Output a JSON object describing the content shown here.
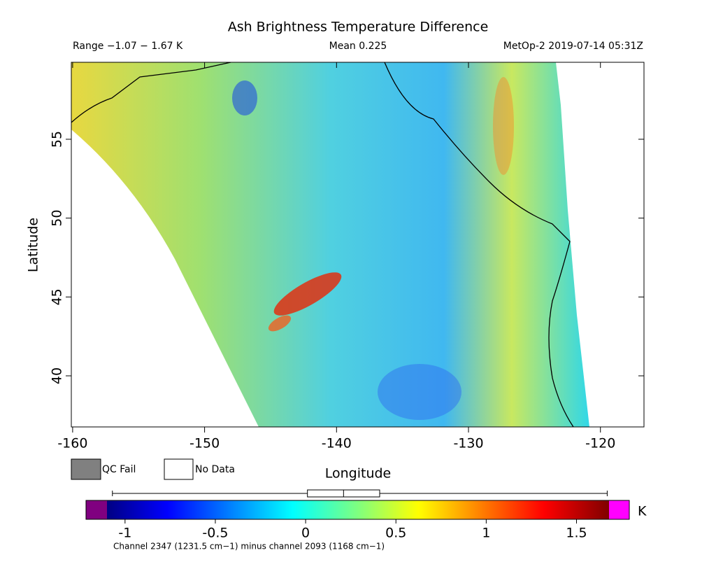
{
  "chart_data": {
    "type": "map",
    "title": "Ash Brightness Temperature Difference",
    "range_label": "Range −1.07 − 1.67 K",
    "mean_label": "Mean 0.225",
    "source_label": "MetOp-2 2019-07-14 05:31Z",
    "xlabel": "Longitude",
    "ylabel": "Latitude",
    "xlim": [
      -160.1,
      -116.7
    ],
    "xticks": [
      -160,
      -150,
      -140,
      -130,
      -120
    ],
    "ylim": [
      36.76,
      59.88
    ],
    "yticks": [
      40,
      45,
      50,
      55
    ],
    "legend": [
      "QC Fail",
      "No Data"
    ],
    "colorbar": {
      "clim": [
        -1.1,
        1.68
      ],
      "ticks": [
        -1,
        -0.5,
        0,
        0.5,
        1,
        1.5
      ],
      "unit": "K",
      "box": {
        "low": -1.07,
        "q1": 0.01,
        "median": 0.21,
        "q3": 0.41,
        "high": 1.67
      }
    },
    "caption": "Channel 2347 (1231.5 cm−1) minus channel 2093 (1168 cm−1)"
  }
}
